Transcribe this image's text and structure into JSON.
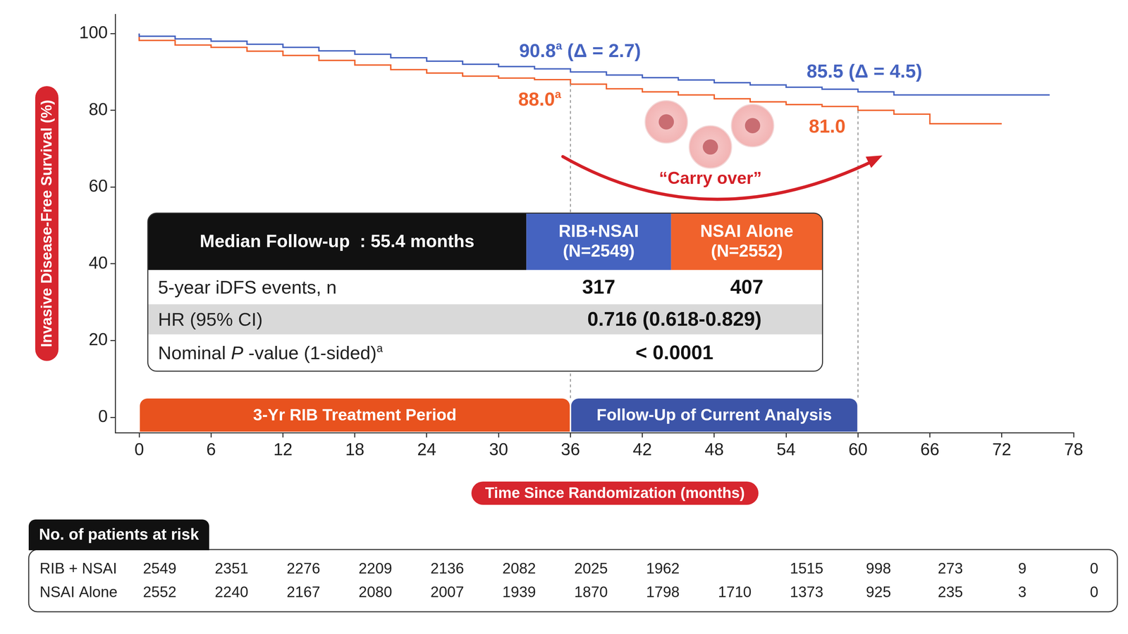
{
  "chart_data": {
    "type": "line",
    "x_label": "Time Since Randomization (months)",
    "y_label": "Invasive Disease-Free Survival (%)",
    "xlim": [
      -2,
      78
    ],
    "xticks": [
      0,
      6,
      12,
      18,
      24,
      30,
      36,
      42,
      48,
      54,
      60,
      66,
      72,
      78
    ],
    "ylim": [
      -4,
      105
    ],
    "yticks": [
      0,
      20,
      40,
      60,
      80,
      100
    ],
    "grid": false,
    "line_style": "step",
    "x": [
      0,
      3,
      6,
      9,
      12,
      15,
      18,
      21,
      24,
      27,
      30,
      33,
      36,
      39,
      42,
      45,
      48,
      51,
      54,
      57,
      60,
      63,
      66,
      69,
      72,
      76
    ],
    "series": [
      {
        "name": "RIB+NSAI",
        "color": "#4563c0",
        "values": [
          100,
          99.3,
          98.6,
          98.0,
          97.2,
          96.4,
          95.5,
          94.6,
          93.7,
          92.8,
          92.0,
          91.4,
          90.8,
          90.0,
          89.2,
          88.5,
          87.9,
          87.2,
          86.6,
          86.0,
          85.5,
          84.8,
          84.0,
          84.0,
          84.0,
          84.0
        ]
      },
      {
        "name": "NSAI Alone",
        "color": "#f0622c",
        "values": [
          100,
          98.2,
          97.0,
          96.4,
          95.4,
          94.3,
          93.0,
          91.8,
          90.6,
          89.7,
          88.9,
          88.4,
          88.0,
          86.8,
          85.6,
          84.8,
          84.0,
          83.0,
          82.2,
          81.5,
          81.0,
          80.0,
          79.0,
          76.5,
          76.5,
          null
        ]
      }
    ],
    "annotations": [
      {
        "series": "RIB+NSAI",
        "x": 36,
        "parts": [
          {
            "text": "90.8"
          },
          {
            "text": "a",
            "sup": true
          },
          {
            "text": " (Δ = 2.7)"
          }
        ]
      },
      {
        "series": "NSAI Alone",
        "x": 36,
        "parts": [
          {
            "text": "88.0"
          },
          {
            "text": "a",
            "sup": true
          }
        ]
      },
      {
        "series": "RIB+NSAI",
        "x": 60,
        "parts": [
          {
            "text": "85.5 (Δ = 4.5)"
          }
        ]
      },
      {
        "series": "NSAI Alone",
        "x": 60,
        "parts": [
          {
            "text": "81.0"
          }
        ]
      }
    ],
    "vlines": [
      36,
      60
    ],
    "periods": [
      {
        "label": "3-Yr RIB Treatment Period",
        "start": 0,
        "end": 36,
        "color": "#e8521e"
      },
      {
        "label": "Follow-Up of Current Analysis",
        "start": 36,
        "end": 60,
        "color": "#3c54a8"
      }
    ],
    "callout": {
      "text": "“Carry over”"
    },
    "table": {
      "header": [
        "Median Follow-up  : 55.4 months",
        "RIB+NSAI (N=2549)",
        "NSAI Alone (N=2552)"
      ],
      "rows": [
        {
          "label": [
            {
              "text": "5-year iDFS events, n"
            }
          ],
          "cells": [
            "317",
            "407"
          ]
        },
        {
          "label": [
            {
              "text": "HR (95% CI)"
            }
          ],
          "cells": [
            "0.716 (0.618-0.829)"
          ]
        },
        {
          "label": [
            {
              "text": "Nominal "
            },
            {
              "text": "P",
              "italic": true
            },
            {
              "text": " -value (1-sided)"
            },
            {
              "text": "a",
              "sup": true
            }
          ],
          "cells": [
            "< 0.0001"
          ]
        }
      ]
    },
    "risk_table": {
      "title": "No. of patients at risk",
      "x": [
        0,
        6,
        12,
        18,
        24,
        30,
        36,
        42,
        48,
        54,
        60,
        66,
        72,
        78
      ],
      "rows": [
        {
          "name": "RIB + NSAI",
          "values": [
            2549,
            2351,
            2276,
            2209,
            2136,
            2082,
            2025,
            1962,
            null,
            1515,
            998,
            273,
            9,
            0
          ]
        },
        {
          "name": "NSAI Alone",
          "values": [
            2552,
            2240,
            2167,
            2080,
            2007,
            1939,
            1870,
            1798,
            1710,
            1373,
            925,
            235,
            3,
            0
          ]
        }
      ]
    }
  }
}
